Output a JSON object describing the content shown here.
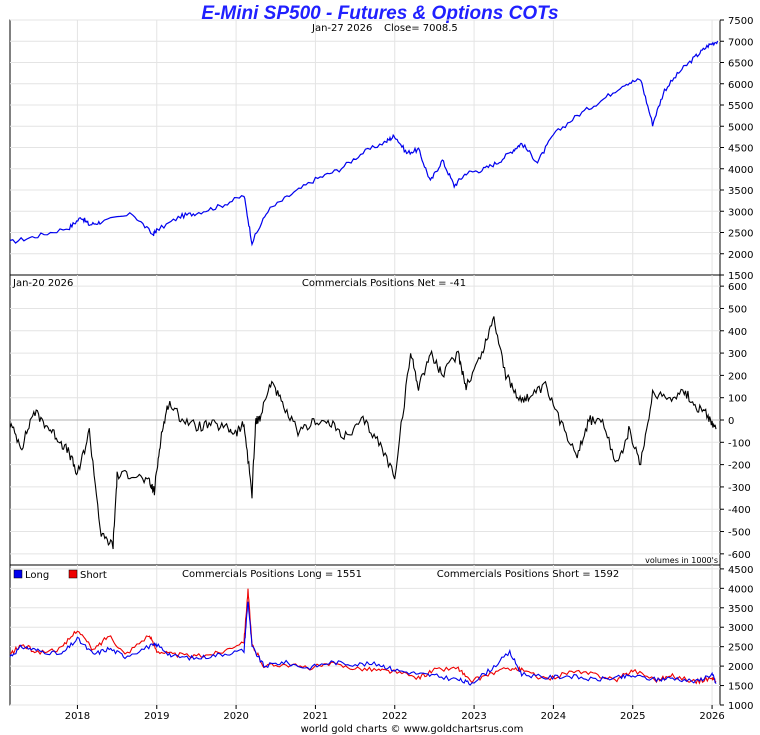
{
  "title": "E-Mini SP500 - Futures & Options COTs",
  "credit": "world gold charts © www.goldchartsrus.com",
  "chart_data": [
    {
      "panel": "price",
      "type": "line",
      "header_date": "Jan-27  2026",
      "header_value": "Close= 7008.5",
      "ylim": [
        1500,
        7500
      ],
      "yticks": [
        1500,
        2000,
        2500,
        3000,
        3500,
        4000,
        4500,
        5000,
        5500,
        6000,
        6500,
        7000,
        7500
      ],
      "series": [
        {
          "color": "#0000ee",
          "x": [
            2017.15,
            2017.5,
            2017.9,
            2018.05,
            2018.15,
            2018.3,
            2018.7,
            2018.95,
            2019.0,
            2019.3,
            2019.5,
            2019.8,
            2020.1,
            2020.2,
            2020.4,
            2020.7,
            2021.0,
            2021.3,
            2021.6,
            2021.9,
            2022.0,
            2022.15,
            2022.3,
            2022.45,
            2022.6,
            2022.75,
            2022.9,
            2023.1,
            2023.3,
            2023.5,
            2023.6,
            2023.8,
            2024.0,
            2024.3,
            2024.6,
            2024.9,
            2025.1,
            2025.25,
            2025.4,
            2025.6,
            2025.8,
            2025.95,
            2026.07
          ],
          "y": [
            2270,
            2420,
            2620,
            2860,
            2680,
            2750,
            2930,
            2450,
            2550,
            2880,
            2960,
            3120,
            3370,
            2260,
            3020,
            3400,
            3750,
            3980,
            4380,
            4650,
            4780,
            4370,
            4450,
            3700,
            4200,
            3600,
            3900,
            3970,
            4150,
            4450,
            4600,
            4150,
            4800,
            5250,
            5600,
            6000,
            6100,
            5050,
            5850,
            6300,
            6650,
            6900,
            7008.5
          ]
        }
      ]
    },
    {
      "panel": "net",
      "type": "line",
      "header_date": "Jan-20  2026",
      "header_label": "Commercials Positions Net = -41",
      "note": "volumes in 1000's",
      "ylim": [
        -650,
        650
      ],
      "yticks": [
        -600,
        -500,
        -400,
        -300,
        -200,
        -100,
        0,
        100,
        200,
        300,
        400,
        500,
        600
      ],
      "series": [
        {
          "color": "#000000",
          "x": [
            2017.15,
            2017.3,
            2017.45,
            2017.6,
            2017.75,
            2017.9,
            2018.0,
            2018.15,
            2018.3,
            2018.45,
            2018.5,
            2018.7,
            2018.9,
            2018.97,
            2019.05,
            2019.15,
            2019.3,
            2019.5,
            2019.7,
            2019.9,
            2020.0,
            2020.1,
            2020.2,
            2020.25,
            2020.3,
            2020.45,
            2020.6,
            2020.8,
            2021.0,
            2021.2,
            2021.4,
            2021.6,
            2021.8,
            2022.0,
            2022.2,
            2022.3,
            2022.45,
            2022.6,
            2022.8,
            2022.9,
            2023.1,
            2023.25,
            2023.4,
            2023.55,
            2023.7,
            2023.9,
            2024.1,
            2024.3,
            2024.45,
            2024.6,
            2024.8,
            2024.95,
            2025.1,
            2025.25,
            2025.45,
            2025.65,
            2025.8,
            2025.95,
            2026.05
          ],
          "y": [
            -20,
            -120,
            40,
            -20,
            -80,
            -150,
            -250,
            -50,
            -520,
            -560,
            -250,
            -240,
            -280,
            -320,
            -80,
            80,
            10,
            -30,
            -20,
            -40,
            -60,
            -20,
            -330,
            0,
            10,
            180,
            50,
            -60,
            0,
            -20,
            -80,
            0,
            -100,
            -250,
            300,
            150,
            300,
            200,
            300,
            150,
            300,
            460,
            200,
            100,
            100,
            150,
            -20,
            -150,
            0,
            0,
            -200,
            -50,
            -200,
            120,
            100,
            130,
            60,
            20,
            -41
          ]
        }
      ]
    },
    {
      "panel": "long-short",
      "type": "line",
      "header_long": "Commercials Positions Long = 1551",
      "header_short": "Commercials Positions Short = 1592",
      "ylim": [
        1000,
        4600
      ],
      "yticks": [
        1000,
        1500,
        2000,
        2500,
        3000,
        3500,
        4000,
        4500
      ],
      "x_ticks": [
        2018,
        2019,
        2020,
        2021,
        2022,
        2023,
        2024,
        2025,
        2026
      ],
      "xlim": [
        2017.15,
        2026.1
      ],
      "legend": [
        {
          "label": "Long",
          "color": "#0000ee"
        },
        {
          "label": "Short",
          "color": "#ee0000"
        }
      ],
      "series": [
        {
          "name": "Long",
          "color": "#0000ee",
          "x": [
            2017.15,
            2017.3,
            2017.5,
            2017.8,
            2018.0,
            2018.2,
            2018.4,
            2018.6,
            2018.9,
            2019.0,
            2019.2,
            2019.5,
            2019.8,
            2020.1,
            2020.15,
            2020.2,
            2020.35,
            2020.6,
            2020.9,
            2021.2,
            2021.5,
            2021.8,
            2022.0,
            2022.3,
            2022.5,
            2022.8,
            2022.95,
            2023.2,
            2023.45,
            2023.6,
            2023.9,
            2024.2,
            2024.5,
            2024.8,
            2025.0,
            2025.3,
            2025.5,
            2025.8,
            2026.0,
            2026.05
          ],
          "y": [
            2250,
            2500,
            2400,
            2300,
            2700,
            2300,
            2450,
            2250,
            2500,
            2550,
            2250,
            2200,
            2300,
            2400,
            3700,
            2500,
            2000,
            2100,
            1950,
            2100,
            2050,
            2050,
            1900,
            1800,
            1750,
            1650,
            1550,
            1900,
            2350,
            1800,
            1700,
            1750,
            1650,
            1700,
            1750,
            1650,
            1700,
            1600,
            1800,
            1551
          ]
        },
        {
          "name": "Short",
          "color": "#ee0000",
          "x": [
            2017.15,
            2017.3,
            2017.5,
            2017.8,
            2018.0,
            2018.2,
            2018.4,
            2018.6,
            2018.9,
            2019.0,
            2019.2,
            2019.5,
            2019.8,
            2020.1,
            2020.15,
            2020.2,
            2020.35,
            2020.6,
            2020.9,
            2021.2,
            2021.5,
            2021.8,
            2022.0,
            2022.3,
            2022.5,
            2022.8,
            2022.95,
            2023.2,
            2023.45,
            2023.6,
            2023.9,
            2024.2,
            2024.5,
            2024.8,
            2025.0,
            2025.3,
            2025.5,
            2025.8,
            2026.0,
            2026.05
          ],
          "y": [
            2300,
            2550,
            2350,
            2450,
            2950,
            2400,
            2800,
            2300,
            2800,
            2400,
            2300,
            2250,
            2350,
            2650,
            3950,
            2550,
            2000,
            2050,
            1950,
            2050,
            1950,
            1900,
            1850,
            1700,
            1900,
            1950,
            1600,
            1800,
            1950,
            1900,
            1650,
            1850,
            1800,
            1650,
            1900,
            1650,
            1750,
            1600,
            1700,
            1592
          ]
        }
      ]
    }
  ]
}
